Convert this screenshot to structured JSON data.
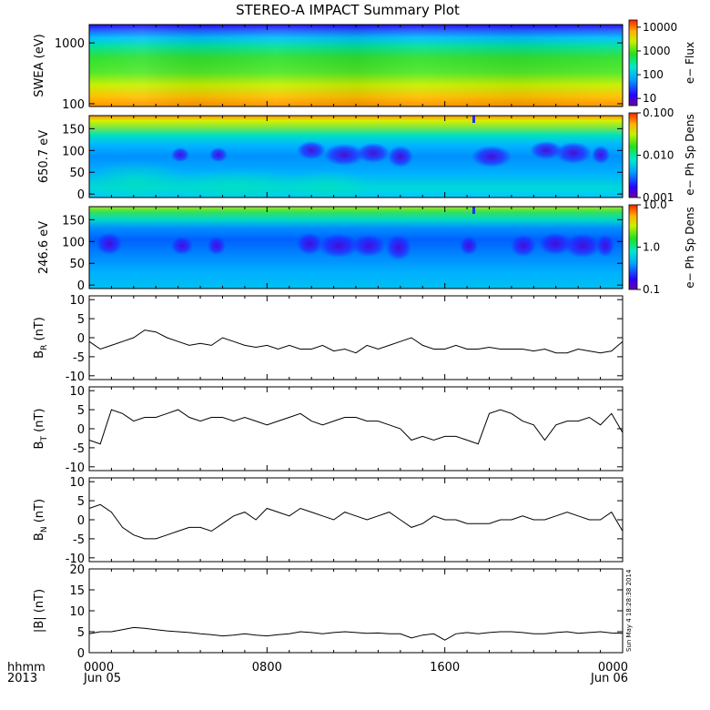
{
  "title": "STEREO-A IMPACT Summary Plot",
  "footer": {
    "row1_label": "hhmm",
    "row2_label": "2013"
  },
  "timestamp_stamp": "Sun May  4 18:28:38 2014",
  "colors": {
    "background": "#ffffff",
    "line": "#000000",
    "axes": "#000000"
  },
  "chart_data": [
    {
      "type": "heatmap",
      "id": "swea",
      "ylabel": "SWEA (eV)",
      "y_scale": "log",
      "ylim": [
        90,
        2000
      ],
      "yticks": [
        {
          "v": 100,
          "label": "100"
        },
        {
          "v": 1000,
          "label": "1000"
        }
      ],
      "colorbar": {
        "label": "e− Flux",
        "scale": "log",
        "range": [
          5,
          20000
        ],
        "ticks": [
          {
            "v": 10,
            "label": "10"
          },
          {
            "v": 100,
            "label": "100"
          },
          {
            "v": 1000,
            "label": "1000"
          },
          {
            "v": 10000,
            "label": "10000"
          }
        ]
      }
    },
    {
      "type": "heatmap",
      "id": "pad650",
      "ylabel": "650.7 eV",
      "ylim": [
        -8,
        180
      ],
      "yticks": [
        {
          "v": 0,
          "label": "0"
        },
        {
          "v": 50,
          "label": "50"
        },
        {
          "v": 100,
          "label": "100"
        },
        {
          "v": 150,
          "label": "150"
        }
      ],
      "colorbar": {
        "label": "e− Ph Sp Dens",
        "scale": "log",
        "range": [
          0.001,
          0.1
        ],
        "ticks": [
          {
            "v": 0.001,
            "label": "0.001"
          },
          {
            "v": 0.01,
            "label": "0.010"
          },
          {
            "v": 0.1,
            "label": "0.100"
          }
        ]
      }
    },
    {
      "type": "heatmap",
      "id": "pad246",
      "ylabel": "246.6 eV",
      "ylim": [
        -8,
        180
      ],
      "yticks": [
        {
          "v": 0,
          "label": "0"
        },
        {
          "v": 50,
          "label": "50"
        },
        {
          "v": 100,
          "label": "100"
        },
        {
          "v": 150,
          "label": "150"
        }
      ],
      "colorbar": {
        "label": "e− Ph Sp Dens",
        "scale": "log",
        "range": [
          0.1,
          10
        ],
        "ticks": [
          {
            "v": 0.1,
            "label": "0.1"
          },
          {
            "v": 1,
            "label": "1.0"
          },
          {
            "v": 10,
            "label": "10.0"
          }
        ]
      }
    },
    {
      "type": "line",
      "id": "br",
      "ylabel_main": "B",
      "ylabel_sub": "R",
      "ylabel_unit": " (nT)",
      "ylim": [
        -11,
        11
      ],
      "yticks": [
        {
          "v": -10,
          "label": "-10"
        },
        {
          "v": -5,
          "label": "-5"
        },
        {
          "v": 0,
          "label": "0"
        },
        {
          "v": 5,
          "label": "5"
        },
        {
          "v": 10,
          "label": "10"
        }
      ],
      "x": [
        0,
        0.5,
        1,
        1.5,
        2,
        2.5,
        3,
        3.5,
        4,
        4.5,
        5,
        5.5,
        6,
        6.5,
        7,
        7.5,
        8,
        8.5,
        9,
        9.5,
        10,
        10.5,
        11,
        11.5,
        12,
        12.5,
        13,
        13.5,
        14,
        14.5,
        15,
        15.5,
        16,
        16.5,
        17,
        17.5,
        18,
        18.5,
        19,
        19.5,
        20,
        20.5,
        21,
        21.5,
        22,
        22.5,
        23,
        23.5,
        24
      ],
      "y": [
        -1,
        -3,
        -2,
        -1,
        0,
        2,
        1.5,
        0,
        -1,
        -2,
        -1.5,
        -2,
        0,
        -1,
        -2,
        -2.5,
        -2,
        -3,
        -2,
        -3,
        -3,
        -2,
        -3.5,
        -3,
        -4,
        -2,
        -3,
        -2,
        -1,
        0,
        -2,
        -3,
        -3,
        -2,
        -3,
        -3,
        -2.5,
        -3,
        -3,
        -3,
        -3.5,
        -3,
        -4,
        -4,
        -3,
        -3.5,
        -4,
        -3.5,
        -1
      ]
    },
    {
      "type": "line",
      "id": "bt",
      "ylabel_main": "B",
      "ylabel_sub": "T",
      "ylabel_unit": " (nT)",
      "ylim": [
        -11,
        11
      ],
      "yticks": [
        {
          "v": -10,
          "label": "-10"
        },
        {
          "v": -5,
          "label": "-5"
        },
        {
          "v": 0,
          "label": "0"
        },
        {
          "v": 5,
          "label": "5"
        },
        {
          "v": 10,
          "label": "10"
        }
      ],
      "x": [
        0,
        0.5,
        1,
        1.5,
        2,
        2.5,
        3,
        3.5,
        4,
        4.5,
        5,
        5.5,
        6,
        6.5,
        7,
        7.5,
        8,
        8.5,
        9,
        9.5,
        10,
        10.5,
        11,
        11.5,
        12,
        12.5,
        13,
        13.5,
        14,
        14.5,
        15,
        15.5,
        16,
        16.5,
        17,
        17.5,
        18,
        18.5,
        19,
        19.5,
        20,
        20.5,
        21,
        21.5,
        22,
        22.5,
        23,
        23.5,
        24
      ],
      "y": [
        -3,
        -4,
        5,
        4,
        2,
        3,
        3,
        4,
        5,
        3,
        2,
        3,
        3,
        2,
        3,
        2,
        1,
        2,
        3,
        4,
        2,
        1,
        2,
        3,
        3,
        2,
        2,
        1,
        0,
        -3,
        -2,
        -3,
        -2,
        -2,
        -3,
        -4,
        4,
        5,
        4,
        2,
        1,
        -3,
        1,
        2,
        2,
        3,
        1,
        4,
        -1
      ]
    },
    {
      "type": "line",
      "id": "bn",
      "ylabel_main": "B",
      "ylabel_sub": "N",
      "ylabel_unit": " (nT)",
      "ylim": [
        -11,
        11
      ],
      "yticks": [
        {
          "v": -10,
          "label": "-10"
        },
        {
          "v": -5,
          "label": "-5"
        },
        {
          "v": 0,
          "label": "0"
        },
        {
          "v": 5,
          "label": "5"
        },
        {
          "v": 10,
          "label": "10"
        }
      ],
      "x": [
        0,
        0.5,
        1,
        1.5,
        2,
        2.5,
        3,
        3.5,
        4,
        4.5,
        5,
        5.5,
        6,
        6.5,
        7,
        7.5,
        8,
        8.5,
        9,
        9.5,
        10,
        10.5,
        11,
        11.5,
        12,
        12.5,
        13,
        13.5,
        14,
        14.5,
        15,
        15.5,
        16,
        16.5,
        17,
        17.5,
        18,
        18.5,
        19,
        19.5,
        20,
        20.5,
        21,
        21.5,
        22,
        22.5,
        23,
        23.5,
        24
      ],
      "y": [
        3,
        4,
        2,
        -2,
        -4,
        -5,
        -5,
        -4,
        -3,
        -2,
        -2,
        -3,
        -1,
        1,
        2,
        0,
        3,
        2,
        1,
        3,
        2,
        1,
        0,
        2,
        1,
        0,
        1,
        2,
        0,
        -2,
        -1,
        1,
        0,
        0,
        -1,
        -1,
        -1,
        0,
        0,
        1,
        0,
        0,
        1,
        2,
        1,
        0,
        0,
        2,
        -3
      ]
    },
    {
      "type": "line",
      "id": "bmag",
      "ylabel_main": "|B| (nT)",
      "ylabel_sub": "",
      "ylabel_unit": "",
      "ylim": [
        0,
        20
      ],
      "yticks": [
        {
          "v": 0,
          "label": "0"
        },
        {
          "v": 5,
          "label": "5"
        },
        {
          "v": 10,
          "label": "10"
        },
        {
          "v": 15,
          "label": "15"
        },
        {
          "v": 20,
          "label": "20"
        }
      ],
      "x": [
        0,
        0.5,
        1,
        1.5,
        2,
        2.5,
        3,
        3.5,
        4,
        4.5,
        5,
        5.5,
        6,
        6.5,
        7,
        7.5,
        8,
        8.5,
        9,
        9.5,
        10,
        10.5,
        11,
        11.5,
        12,
        12.5,
        13,
        13.5,
        14,
        14.5,
        15,
        15.5,
        16,
        16.5,
        17,
        17.5,
        18,
        18.5,
        19,
        19.5,
        20,
        20.5,
        21,
        21.5,
        22,
        22.5,
        23,
        23.5,
        24
      ],
      "y": [
        4.5,
        5,
        5,
        5.5,
        6,
        5.8,
        5.5,
        5.2,
        5,
        4.8,
        4.5,
        4.3,
        4,
        4.2,
        4.5,
        4.2,
        4,
        4.3,
        4.5,
        5,
        4.8,
        4.5,
        4.8,
        5,
        4.8,
        4.6,
        4.7,
        4.5,
        4.5,
        3.5,
        4.2,
        4.5,
        3,
        4.5,
        4.8,
        4.5,
        4.8,
        5,
        5,
        4.8,
        4.5,
        4.5,
        4.8,
        5,
        4.6,
        4.8,
        5,
        4.7,
        4.6
      ]
    }
  ],
  "x_axis": {
    "range_hours": [
      0,
      24
    ],
    "ticks": [
      {
        "hour": 0,
        "time": "0000",
        "date": "Jun 05"
      },
      {
        "hour": 8,
        "time": "0800",
        "date": ""
      },
      {
        "hour": 16,
        "time": "1600",
        "date": ""
      },
      {
        "hour": 24,
        "time": "0000",
        "date": "Jun 06"
      }
    ]
  }
}
